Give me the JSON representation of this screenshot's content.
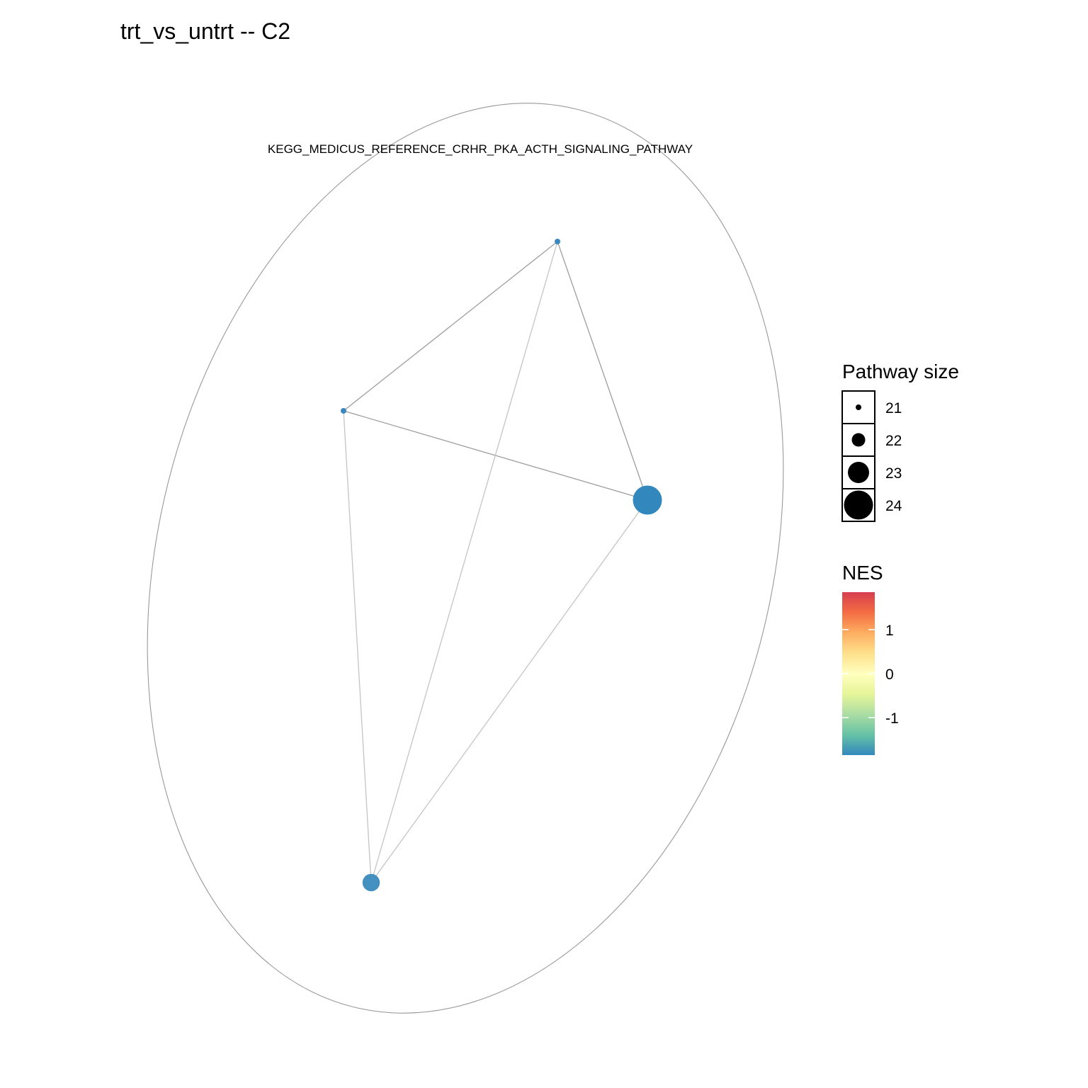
{
  "title": "trt_vs_untrt -- C2",
  "cluster": {
    "label": "KEGG_MEDICUS_REFERENCE_CRHR_PKA_ACTH_SIGNALING_PATHWAY",
    "outline_color": "#999999"
  },
  "network": {
    "nodes": [
      {
        "id": "n1",
        "size": 21,
        "color": "#3A88BD"
      },
      {
        "id": "n2",
        "size": 21,
        "color": "#3A88BD"
      },
      {
        "id": "n3",
        "size": 24,
        "color": "#3288BD"
      },
      {
        "id": "n4",
        "size": 22.5,
        "color": "#4490C0"
      }
    ],
    "edges": [
      {
        "source": "n1",
        "target": "n2",
        "color": "#9e9e9e"
      },
      {
        "source": "n1",
        "target": "n3",
        "color": "#9e9e9e"
      },
      {
        "source": "n2",
        "target": "n3",
        "color": "#9e9e9e"
      },
      {
        "source": "n1",
        "target": "n4",
        "color": "#c4c4c4"
      },
      {
        "source": "n2",
        "target": "n4",
        "color": "#c4c4c4"
      },
      {
        "source": "n3",
        "target": "n4",
        "color": "#c4c4c4"
      }
    ]
  },
  "legend_size": {
    "title": "Pathway size",
    "entries": [
      {
        "value": 21,
        "label": "21"
      },
      {
        "value": 22,
        "label": "22"
      },
      {
        "value": 23,
        "label": "23"
      },
      {
        "value": 24,
        "label": "24"
      }
    ]
  },
  "legend_nes": {
    "title": "NES",
    "range": [
      -1.85,
      1.85
    ],
    "ticks": [
      {
        "value": 1,
        "label": "1"
      },
      {
        "value": 0,
        "label": "0"
      },
      {
        "value": -1,
        "label": "-1"
      }
    ],
    "gradient": [
      "#D53E4F",
      "#F46D43",
      "#FDAE61",
      "#FEE08B",
      "#FFFFBF",
      "#E6F598",
      "#ABDDA4",
      "#66C2A5",
      "#3288BD"
    ]
  }
}
